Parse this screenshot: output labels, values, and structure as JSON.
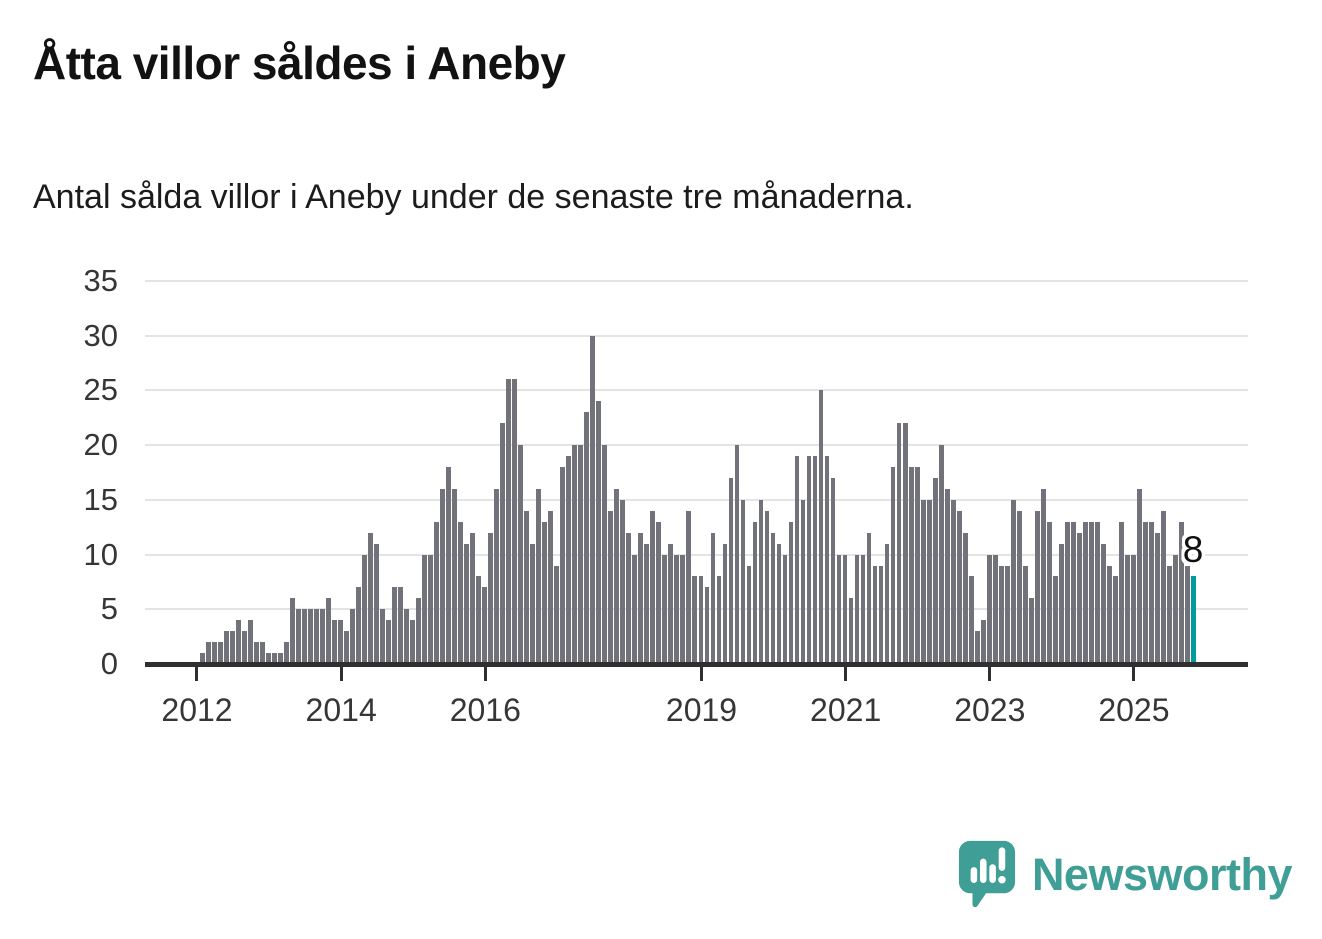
{
  "header": {
    "title": "Åtta villor såldes i Aneby",
    "subtitle": "Antal sålda villor i Aneby under de senaste tre månaderna."
  },
  "chart_data": {
    "type": "bar",
    "title": "Åtta villor såldes i Aneby",
    "subtitle": "Antal sålda villor i Aneby under de senaste tre månaderna.",
    "frequency": "monthly",
    "x_start_year": 2012,
    "x_start_month": 2,
    "ylim": [
      0,
      35
    ],
    "y_ticks": [
      0,
      5,
      10,
      15,
      20,
      25,
      30,
      35
    ],
    "x_tick_years": [
      "2012",
      "2014",
      "2016",
      "2019",
      "2021",
      "2023",
      "2025"
    ],
    "grid": true,
    "values": [
      1,
      2,
      2,
      2,
      3,
      3,
      4,
      3,
      4,
      2,
      2,
      1,
      1,
      1,
      2,
      6,
      5,
      5,
      5,
      5,
      5,
      6,
      4,
      4,
      3,
      5,
      7,
      10,
      12,
      11,
      5,
      4,
      7,
      7,
      5,
      4,
      6,
      10,
      10,
      13,
      16,
      18,
      16,
      13,
      11,
      12,
      8,
      7,
      12,
      16,
      22,
      26,
      26,
      20,
      14,
      11,
      16,
      13,
      14,
      9,
      18,
      19,
      20,
      20,
      23,
      30,
      24,
      20,
      14,
      16,
      15,
      12,
      10,
      12,
      11,
      14,
      13,
      10,
      11,
      10,
      10,
      14,
      8,
      8,
      7,
      12,
      8,
      11,
      17,
      20,
      15,
      9,
      13,
      15,
      14,
      12,
      11,
      10,
      13,
      19,
      15,
      19,
      19,
      25,
      19,
      17,
      10,
      10,
      6,
      10,
      10,
      12,
      9,
      9,
      11,
      18,
      22,
      22,
      18,
      18,
      15,
      15,
      17,
      20,
      16,
      15,
      14,
      12,
      8,
      3,
      4,
      10,
      10,
      9,
      9,
      15,
      14,
      9,
      6,
      14,
      16,
      13,
      8,
      11,
      13,
      13,
      12,
      13,
      13,
      13,
      11,
      9,
      8,
      13,
      10,
      10,
      16,
      13,
      13,
      12,
      14,
      9,
      10,
      13,
      9,
      8
    ],
    "highlight_index": 165,
    "highlight_value": 8,
    "highlight_label": "8",
    "colors": {
      "bar": "#72727b",
      "highlight": "#009b9c",
      "axis": "#2f2f2f",
      "grid": "#e4e4e4",
      "tick_text": "#363636"
    }
  },
  "footer": {
    "brand": "Newsworthy",
    "logo_color": "#3f9e96"
  }
}
